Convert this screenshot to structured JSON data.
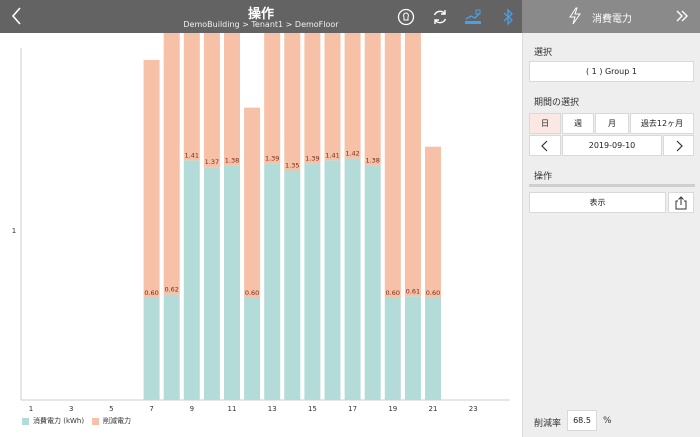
{
  "header": {
    "title": "操作",
    "breadcrumb": "DemoBuilding > Tenant1 > DemoFloor"
  },
  "side_header": {
    "title": "消費電力"
  },
  "panel": {
    "select_label": "選択",
    "group_value": "( 1 ) Group 1",
    "period_label": "期間の選択",
    "period_tabs": [
      "日",
      "週",
      "月",
      "過去12ヶ月"
    ],
    "selected_tab": "日",
    "date_value": "2019-09-10",
    "operation_label": "操作",
    "show_button": "表示",
    "reduction_label": "削減率",
    "reduction_value": "68.5",
    "reduction_unit": "%"
  },
  "colors": {
    "header_bg": "#636363",
    "consumption": "#b3dcd8",
    "reduction": "#f6c1a6",
    "accent_blue": "#4a9fe6"
  },
  "chart_data": {
    "type": "bar",
    "stacked": true,
    "y_tick_label": "1",
    "x_tick_labels": [
      "1",
      "3",
      "5",
      "7",
      "9",
      "11",
      "13",
      "15",
      "17",
      "19",
      "21",
      "23"
    ],
    "legend": [
      "消費電力 (kWh)",
      "削減電力"
    ],
    "legend_placement": "bottom-left",
    "bars": [
      {
        "hour": 7,
        "consumption": 0.6,
        "reduction": 1.4,
        "label": "0.60"
      },
      {
        "hour": 8,
        "consumption": 0.62,
        "reduction": 2.5,
        "label": "0.62"
      },
      {
        "hour": 9,
        "consumption": 1.41,
        "reduction": 1.71,
        "label": "1.41"
      },
      {
        "hour": 10,
        "consumption": 1.37,
        "reduction": 1.75,
        "label": "1.37"
      },
      {
        "hour": 11,
        "consumption": 1.38,
        "reduction": 1.74,
        "label": "1.38"
      },
      {
        "hour": 12,
        "consumption": 0.6,
        "reduction": 1.12,
        "label": "0.60"
      },
      {
        "hour": 13,
        "consumption": 1.39,
        "reduction": 1.73,
        "label": "1.39"
      },
      {
        "hour": 14,
        "consumption": 1.35,
        "reduction": 1.77,
        "label": "1.35"
      },
      {
        "hour": 15,
        "consumption": 1.39,
        "reduction": 1.73,
        "label": "1.39"
      },
      {
        "hour": 16,
        "consumption": 1.41,
        "reduction": 1.71,
        "label": "1.41"
      },
      {
        "hour": 17,
        "consumption": 1.42,
        "reduction": 1.7,
        "label": "1.42"
      },
      {
        "hour": 18,
        "consumption": 1.38,
        "reduction": 1.74,
        "label": "1.38"
      },
      {
        "hour": 19,
        "consumption": 0.6,
        "reduction": 2.52,
        "label": "0.60"
      },
      {
        "hour": 20,
        "consumption": 0.61,
        "reduction": 2.51,
        "label": "0.61"
      },
      {
        "hour": 21,
        "consumption": 0.6,
        "reduction": 0.89,
        "label": "0.60"
      }
    ]
  }
}
